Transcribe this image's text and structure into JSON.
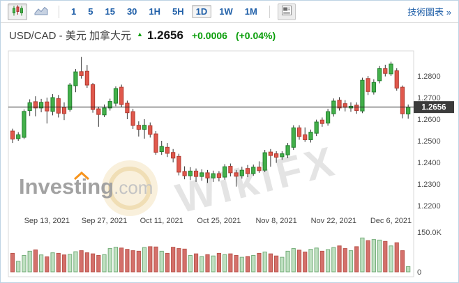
{
  "toolbar": {
    "chart_types": [
      {
        "name": "candlestick",
        "selected": true
      },
      {
        "name": "line",
        "selected": false
      }
    ],
    "intervals": [
      "1",
      "5",
      "15",
      "30",
      "1H",
      "5H",
      "1D",
      "1W",
      "1M"
    ],
    "selected_interval": "1D",
    "link_label": "技術圖表 »"
  },
  "quote": {
    "symbol": "USD/CAD - 美元 加拿大元",
    "price": "1.2656",
    "change": "+0.0006",
    "change_pct": "(+0.04%)",
    "direction": "up"
  },
  "watermarks": {
    "investing": "Investing",
    "investing_suffix": ".com",
    "wikifx": "WikiFX"
  },
  "colors": {
    "up_candle": "#43b04a",
    "up_border": "#20802c",
    "down_candle": "#e0584c",
    "down_border": "#b13b31",
    "vol_up_fill": "#bfe0c1",
    "vol_up_border": "#74ad79",
    "vol_down_fill": "#d4706b",
    "vol_down_border": "#bb554c",
    "quote_green": "#0a9e0a",
    "link_blue": "#1f5fa8",
    "price_label_bg": "#3b3b3b",
    "axis_text": "#4c4c4c",
    "plot_border": "#d8d8d8",
    "price_line": "#222222"
  },
  "chart_data": {
    "type": "candlestick+volume",
    "symbol": "USD/CAD",
    "interval": "1D",
    "current_price": 1.2656,
    "price_axis_ticks": [
      "1.2800",
      "1.2700",
      "1.2600",
      "1.2500",
      "1.2400",
      "1.2300",
      "1.2200"
    ],
    "volume_axis_ticks": [
      "150.0K",
      "0"
    ],
    "x_labels": [
      {
        "index": 6,
        "label": "Sep 13, 2021"
      },
      {
        "index": 16,
        "label": "Sep 27, 2021"
      },
      {
        "index": 26,
        "label": "Oct 11, 2021"
      },
      {
        "index": 36,
        "label": "Oct 25, 2021"
      },
      {
        "index": 46,
        "label": "Nov 8, 2021"
      },
      {
        "index": 56,
        "label": "Nov 22, 2021"
      },
      {
        "index": 66,
        "label": "Dec 6, 2021"
      }
    ],
    "ohlcv_format": [
      "open",
      "high",
      "low",
      "close",
      "volume_k"
    ],
    "ohlcv": [
      [
        1.2545,
        1.2556,
        1.249,
        1.2508,
        70
      ],
      [
        1.251,
        1.254,
        1.25,
        1.2528,
        40
      ],
      [
        1.2516,
        1.2645,
        1.2508,
        1.2636,
        62
      ],
      [
        1.264,
        1.2692,
        1.2615,
        1.2676,
        78
      ],
      [
        1.2681,
        1.2706,
        1.2613,
        1.2652,
        83
      ],
      [
        1.2652,
        1.2694,
        1.2632,
        1.2678,
        64
      ],
      [
        1.268,
        1.27,
        1.258,
        1.2638,
        57
      ],
      [
        1.2636,
        1.2716,
        1.2618,
        1.27,
        72
      ],
      [
        1.2695,
        1.2712,
        1.2608,
        1.2628,
        70
      ],
      [
        1.2655,
        1.2678,
        1.2596,
        1.2626,
        64
      ],
      [
        1.2645,
        1.2768,
        1.2635,
        1.2758,
        66
      ],
      [
        1.2755,
        1.2832,
        1.2725,
        1.2819,
        76
      ],
      [
        1.282,
        1.2888,
        1.2788,
        1.2802,
        80
      ],
      [
        1.2822,
        1.2851,
        1.2745,
        1.2758,
        72
      ],
      [
        1.276,
        1.2768,
        1.263,
        1.2645,
        68
      ],
      [
        1.2648,
        1.2658,
        1.2565,
        1.2622,
        62
      ],
      [
        1.262,
        1.2668,
        1.261,
        1.2652,
        65
      ],
      [
        1.2652,
        1.2695,
        1.264,
        1.2682,
        88
      ],
      [
        1.2674,
        1.2752,
        1.266,
        1.2742,
        93
      ],
      [
        1.2748,
        1.276,
        1.2655,
        1.2668,
        90
      ],
      [
        1.2674,
        1.2686,
        1.26,
        1.263,
        85
      ],
      [
        1.2635,
        1.2648,
        1.2555,
        1.2571,
        80
      ],
      [
        1.2572,
        1.259,
        1.252,
        1.2553,
        78
      ],
      [
        1.2553,
        1.26,
        1.251,
        1.2572,
        92
      ],
      [
        1.257,
        1.2585,
        1.2515,
        1.253,
        95
      ],
      [
        1.2532,
        1.2545,
        1.2435,
        1.2447,
        94
      ],
      [
        1.245,
        1.25,
        1.2435,
        1.2474,
        78
      ],
      [
        1.247,
        1.249,
        1.2425,
        1.2442,
        70
      ],
      [
        1.2446,
        1.2462,
        1.24,
        1.242,
        93
      ],
      [
        1.2428,
        1.244,
        1.234,
        1.2355,
        88
      ],
      [
        1.2358,
        1.2382,
        1.2322,
        1.2338,
        86
      ],
      [
        1.2338,
        1.2378,
        1.2318,
        1.236,
        62
      ],
      [
        1.236,
        1.2372,
        1.231,
        1.2335,
        68
      ],
      [
        1.2335,
        1.2368,
        1.2315,
        1.2352,
        58
      ],
      [
        1.2352,
        1.2365,
        1.2305,
        1.2328,
        65
      ],
      [
        1.2328,
        1.2362,
        1.231,
        1.2348,
        60
      ],
      [
        1.2348,
        1.236,
        1.2312,
        1.233,
        70
      ],
      [
        1.2332,
        1.2392,
        1.232,
        1.238,
        65
      ],
      [
        1.2382,
        1.2395,
        1.2335,
        1.2352,
        68
      ],
      [
        1.2352,
        1.2365,
        1.2288,
        1.2336,
        62
      ],
      [
        1.2338,
        1.238,
        1.2325,
        1.2364,
        55
      ],
      [
        1.2372,
        1.2388,
        1.2332,
        1.2348,
        58
      ],
      [
        1.2348,
        1.239,
        1.2338,
        1.2378,
        62
      ],
      [
        1.2378,
        1.2405,
        1.2352,
        1.2362,
        70
      ],
      [
        1.2364,
        1.2458,
        1.2355,
        1.2445,
        75
      ],
      [
        1.2448,
        1.2462,
        1.238,
        1.2432,
        68
      ],
      [
        1.244,
        1.2452,
        1.2398,
        1.2424,
        60
      ],
      [
        1.2426,
        1.2452,
        1.2412,
        1.244,
        55
      ],
      [
        1.2435,
        1.249,
        1.242,
        1.2478,
        78
      ],
      [
        1.247,
        1.2572,
        1.2458,
        1.256,
        88
      ],
      [
        1.256,
        1.2572,
        1.2505,
        1.252,
        82
      ],
      [
        1.2528,
        1.2562,
        1.2495,
        1.2505,
        75
      ],
      [
        1.2505,
        1.2552,
        1.2492,
        1.254,
        85
      ],
      [
        1.2535,
        1.2598,
        1.2522,
        1.2587,
        90
      ],
      [
        1.2596,
        1.2608,
        1.2565,
        1.258,
        78
      ],
      [
        1.2582,
        1.2648,
        1.257,
        1.2635,
        84
      ],
      [
        1.2625,
        1.2696,
        1.2612,
        1.2684,
        92
      ],
      [
        1.2688,
        1.2702,
        1.264,
        1.2652,
        98
      ],
      [
        1.2672,
        1.2688,
        1.2636,
        1.2655,
        88
      ],
      [
        1.2652,
        1.2678,
        1.2634,
        1.266,
        80
      ],
      [
        1.2665,
        1.2678,
        1.2625,
        1.264,
        95
      ],
      [
        1.2638,
        1.2792,
        1.2628,
        1.278,
        128
      ],
      [
        1.2788,
        1.28,
        1.2712,
        1.2728,
        118
      ],
      [
        1.2726,
        1.2785,
        1.2714,
        1.277,
        122
      ],
      [
        1.2778,
        1.2846,
        1.2766,
        1.2834,
        120
      ],
      [
        1.2834,
        1.2852,
        1.2798,
        1.2812,
        115
      ],
      [
        1.281,
        1.2866,
        1.28,
        1.2855,
        98
      ],
      [
        1.2824,
        1.2836,
        1.2732,
        1.2744,
        110
      ],
      [
        1.2748,
        1.2756,
        1.2604,
        1.2625,
        80
      ],
      [
        1.2624,
        1.2668,
        1.2602,
        1.2656,
        20
      ]
    ]
  }
}
